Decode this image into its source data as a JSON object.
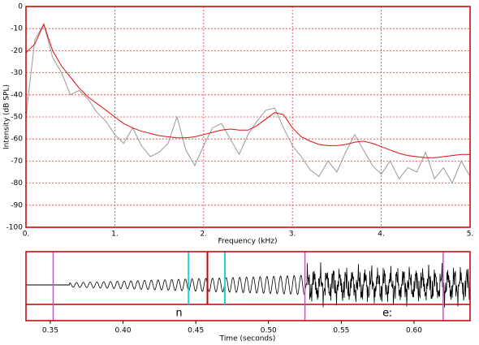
{
  "chart_data": [
    {
      "type": "line",
      "ylabel": "Intensity (dB SPL)",
      "xlabel": "Frequency (kHz)",
      "xlim": [
        0,
        5
      ],
      "ylim": [
        -100,
        0
      ],
      "xticks": [
        {
          "value": 0,
          "label": "0."
        },
        {
          "value": 1,
          "label": "1."
        },
        {
          "value": 2,
          "label": "2."
        },
        {
          "value": 3,
          "label": "3."
        },
        {
          "value": 4,
          "label": "4."
        },
        {
          "value": 5,
          "label": "5."
        }
      ],
      "yticks": [
        0,
        -10,
        -20,
        -30,
        -40,
        -50,
        -60,
        -70,
        -80,
        -90,
        -100
      ],
      "grid": true,
      "grid_color": "#e04040",
      "frame_color": "#c00000",
      "x": [
        0,
        0.1,
        0.2,
        0.3,
        0.4,
        0.5,
        0.6,
        0.7,
        0.8,
        0.9,
        1,
        1.1,
        1.2,
        1.3,
        1.4,
        1.5,
        1.6,
        1.7,
        1.8,
        1.9,
        2,
        2.1,
        2.2,
        2.3,
        2.4,
        2.5,
        2.6,
        2.7,
        2.8,
        2.9,
        3,
        3.1,
        3.2,
        3.3,
        3.4,
        3.5,
        3.6,
        3.7,
        3.8,
        3.9,
        4,
        4.1,
        4.2,
        4.3,
        4.4,
        4.5,
        4.6,
        4.7,
        4.8,
        4.9,
        5
      ],
      "series": [
        {
          "color": "#999999",
          "values": [
            -50,
            -15,
            -8,
            -23,
            -30,
            -40,
            -38,
            -42,
            -48,
            -52,
            -58,
            -62,
            -55,
            -63,
            -68,
            -66,
            -62,
            -50,
            -65,
            -72,
            -63,
            -55,
            -53,
            -60,
            -67,
            -58,
            -52,
            -47,
            -46,
            -55,
            -63,
            -68,
            -74,
            -77,
            -70,
            -75,
            -66,
            -58,
            -65,
            -72,
            -76,
            -70,
            -78,
            -73,
            -75,
            -66,
            -78,
            -73,
            -80,
            -70,
            -77
          ]
        },
        {
          "color": "#dd1111",
          "values": [
            -21,
            -17,
            -8,
            -20,
            -27,
            -32,
            -37,
            -41,
            -44,
            -47,
            -50,
            -53,
            -55,
            -56.5,
            -57.5,
            -58.5,
            -59,
            -59.5,
            -59.5,
            -59,
            -58,
            -57,
            -56,
            -55.5,
            -56,
            -56,
            -54,
            -51,
            -48,
            -49,
            -55,
            -59,
            -61,
            -62.5,
            -63,
            -63,
            -62.5,
            -61.5,
            -61,
            -62,
            -63.5,
            -65,
            -66.5,
            -67.5,
            -68,
            -68.5,
            -68.5,
            -68,
            -67.5,
            -67,
            -67
          ]
        }
      ]
    },
    {
      "type": "waveform",
      "xlabel": "Time (seconds)",
      "xlim": [
        0.3333,
        0.6385
      ],
      "xticks": [
        0.35,
        {
          "value": 0.4,
          "label": "0.40"
        },
        0.45,
        {
          "value": 0.5,
          "label": "0.50"
        },
        0.55,
        {
          "value": 0.6,
          "label": "0.60"
        }
      ],
      "boundaries": [
        0.352,
        0.525,
        0.62
      ],
      "boundary_color": "#e040e0",
      "cursors": [
        {
          "value": 0.445,
          "color": "#20d0e0"
        },
        {
          "value": 0.47,
          "color": "#20d0e0"
        },
        {
          "value": 0.458,
          "color": "#cc0000"
        }
      ],
      "segments": [
        "n",
        "eː"
      ],
      "frame_color": "#c00000"
    }
  ]
}
